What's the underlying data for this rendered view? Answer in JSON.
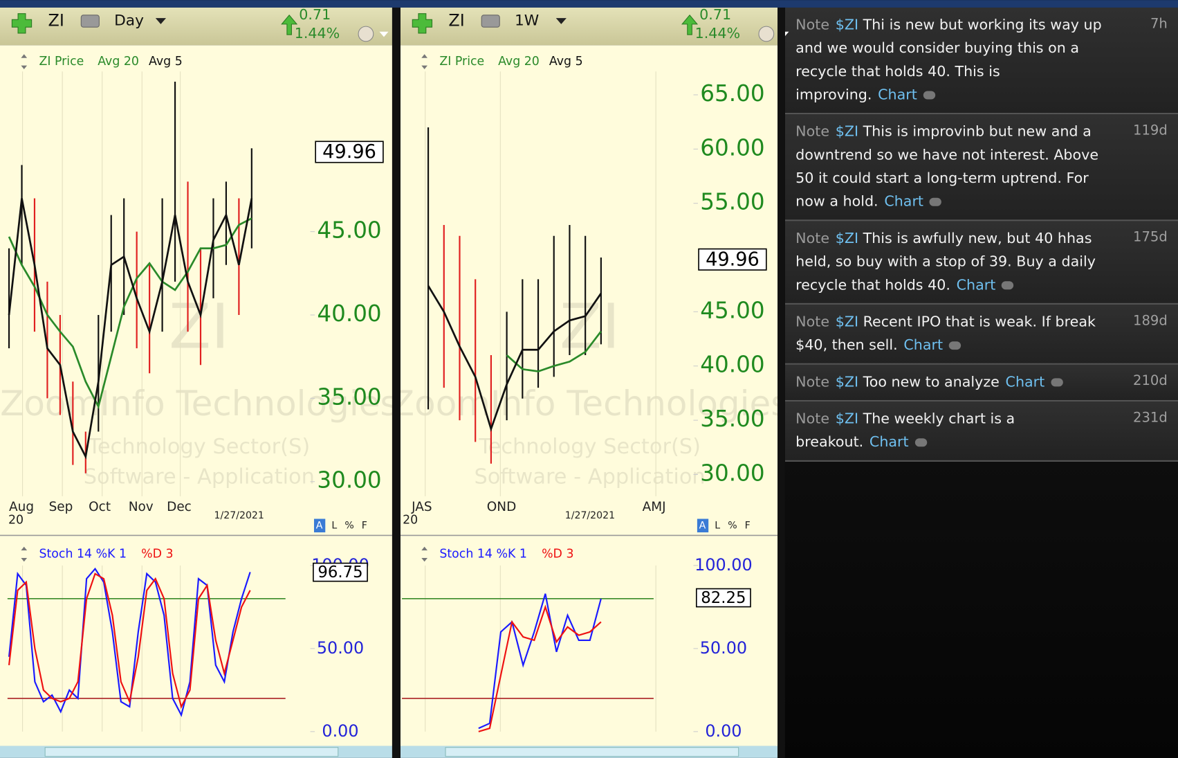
{
  "panels": [
    {
      "header": {
        "symbol": "ZI",
        "period": "Day",
        "change": "0.71",
        "change_pct": "1.44%"
      },
      "price_chart": {
        "legend": [
          "ZI Price",
          "Avg 20",
          "Avg 5"
        ],
        "watermark": {
          "symbol": "ZI",
          "company": "ZoomInfo Technologies",
          "sector": "Technology Sector(S)",
          "industry": "Software - Application"
        },
        "ylim": [
          29.12,
          54.61
        ],
        "yticks": [
          {
            "value": 30,
            "label": "30.00"
          },
          {
            "value": 35,
            "label": "35.00"
          },
          {
            "value": 40,
            "label": "40.00"
          },
          {
            "value": 45,
            "label": "45.00"
          }
        ],
        "last_price": "49.96",
        "x_labels": [
          "Aug",
          "Sep",
          "Oct",
          "Nov",
          "Dec"
        ],
        "x_year": "20",
        "date": "1/27/2021",
        "highs": [
          44,
          49,
          47,
          42,
          40,
          36,
          33,
          40,
          46,
          47,
          45,
          43,
          47,
          54,
          48,
          44,
          47,
          48,
          47,
          50
        ],
        "lows": [
          38,
          43,
          39,
          35,
          34,
          31,
          30.5,
          33,
          39,
          40,
          38,
          36.5,
          39,
          42,
          39,
          37,
          41,
          43,
          40,
          44
        ],
        "series": [
          {
            "name": "Avg 20",
            "color": "#2a8a2a",
            "values": [
              44.7,
              43,
              41.7,
              40,
              39,
              38.1,
              36,
              34.5,
              37.5,
              40.5,
              42.2,
              43.1,
              42,
              41.5,
              42.6,
              44,
              44,
              44.2,
              45.4,
              45.8
            ]
          },
          {
            "name": "Avg 5",
            "color": "#111111",
            "values": [
              40,
              47,
              43,
              38,
              37,
              33,
              31.5,
              36,
              43,
              43.5,
              41,
              39,
              42,
              46,
              42,
              40,
              44.5,
              46,
              43,
              47
            ]
          }
        ]
      },
      "scale_buttons": [
        "A",
        "L",
        "%",
        "F"
      ],
      "stoch_chart": {
        "legend": [
          "Stoch 14 %K 1",
          "%D 3"
        ],
        "ylim": [
          0,
          100
        ],
        "yticks": [
          {
            "value": 0,
            "label": "0.00"
          },
          {
            "value": 50,
            "label": "50.00"
          },
          {
            "value": 100,
            "label": "100.00"
          }
        ],
        "levels": [
          80,
          20
        ],
        "last_value": "96.75",
        "series": [
          {
            "name": "%K",
            "color": "#1a1aff",
            "values": [
              45,
              95,
              88,
              30,
              18,
              22,
              12,
              25,
              20,
              92,
              98,
              90,
              60,
              18,
              15,
              60,
              95,
              90,
              70,
              20,
              10,
              30,
              92,
              88,
              40,
              30,
              60,
              80,
              96
            ]
          },
          {
            "name": "%D",
            "color": "#ee1111",
            "values": [
              40,
              85,
              90,
              50,
              25,
              20,
              18,
              20,
              30,
              80,
              95,
              92,
              70,
              30,
              18,
              45,
              85,
              92,
              80,
              35,
              15,
              25,
              80,
              88,
              55,
              35,
              55,
              75,
              85
            ]
          }
        ]
      }
    },
    {
      "header": {
        "symbol": "ZI",
        "period": "1W",
        "change": "0.71",
        "change_pct": "1.44%"
      },
      "price_chart": {
        "legend": [
          "ZI Price",
          "Avg 20",
          "Avg 5"
        ],
        "watermark": {
          "symbol": "ZI",
          "company": "ZoomInfo Technologies",
          "sector": "Technology Sector(S)",
          "industry": "Software - Application"
        },
        "ylim": [
          27.99,
          67.15
        ],
        "yticks": [
          {
            "value": 30,
            "label": "30.00"
          },
          {
            "value": 35,
            "label": "35.00"
          },
          {
            "value": 40,
            "label": "40.00"
          },
          {
            "value": 45,
            "label": "45.00"
          },
          {
            "value": 55,
            "label": "55.00"
          },
          {
            "value": 60,
            "label": "60.00"
          },
          {
            "value": 65,
            "label": "65.00"
          }
        ],
        "last_price": "49.96",
        "x_labels": [
          "JAS",
          "OND",
          "AMJ"
        ],
        "x_year": "20",
        "date": "1/27/2021",
        "highs": [
          62,
          53,
          52,
          48,
          41,
          45,
          48,
          48,
          52,
          53,
          52,
          50
        ],
        "lows": [
          36,
          38,
          35,
          33,
          31,
          35,
          37,
          38,
          39,
          41,
          41,
          42
        ],
        "series": [
          {
            "name": "Avg 20",
            "color": "#2a8a2a",
            "values": [
              null,
              null,
              null,
              null,
              null,
              41,
              39.7,
              39.5,
              40,
              40.4,
              41.3,
              43.2
            ]
          },
          {
            "name": "Avg 5",
            "color": "#111111",
            "values": [
              47.4,
              45,
              41.8,
              39,
              34.2,
              38.3,
              41.5,
              41.5,
              43.2,
              44.2,
              44.6,
              46.7
            ]
          }
        ]
      },
      "scale_buttons": [
        "A",
        "L",
        "%",
        "F"
      ],
      "stoch_chart": {
        "legend": [
          "Stoch 14 %K 1",
          "%D 3"
        ],
        "ylim": [
          0,
          100
        ],
        "yticks": [
          {
            "value": 0,
            "label": "0.00"
          },
          {
            "value": 50,
            "label": "50.00"
          },
          {
            "value": 100,
            "label": "100.00"
          }
        ],
        "levels": [
          80,
          20
        ],
        "last_value": "82.25",
        "series": [
          {
            "name": "%K",
            "color": "#1a1aff",
            "values": [
              2,
              5,
              60,
              66,
              40,
              60,
              83,
              48,
              70,
              55,
              55,
              80
            ]
          },
          {
            "name": "%D",
            "color": "#ee1111",
            "values": [
              0,
              2,
              34,
              66,
              57,
              55,
              75,
              54,
              63,
              58,
              60,
              66
            ]
          }
        ]
      }
    }
  ],
  "notes": [
    {
      "label": "Note",
      "symbol": "$ZI",
      "text": "Thi is new but working its way up and we would consider buying this on a recycle that holds 40. This is improving.",
      "link": "Chart",
      "age": "7h"
    },
    {
      "label": "Note",
      "symbol": "$ZI",
      "text": "This is improvinb but new and a downtrend so we have not interest. Above 50 it could start a long-term uptrend. For now a hold.",
      "link": "Chart",
      "age": "119d"
    },
    {
      "label": "Note",
      "symbol": "$ZI",
      "text": "This is awfully new, but 40 hhas held, so buy with a stop of 39. Buy a daily recycle that holds 40.",
      "link": "Chart",
      "age": "175d"
    },
    {
      "label": "Note",
      "symbol": "$ZI",
      "text": "Recent IPO that is weak. If break $40, then sell.",
      "link": "Chart",
      "age": "189d"
    },
    {
      "label": "Note",
      "symbol": "$ZI",
      "text": "Too new to analyze",
      "link": "Chart",
      "age": "210d"
    },
    {
      "label": "Note",
      "symbol": "$ZI",
      "text": "The weekly chart is a breakout.",
      "link": "Chart",
      "age": "231d"
    }
  ]
}
